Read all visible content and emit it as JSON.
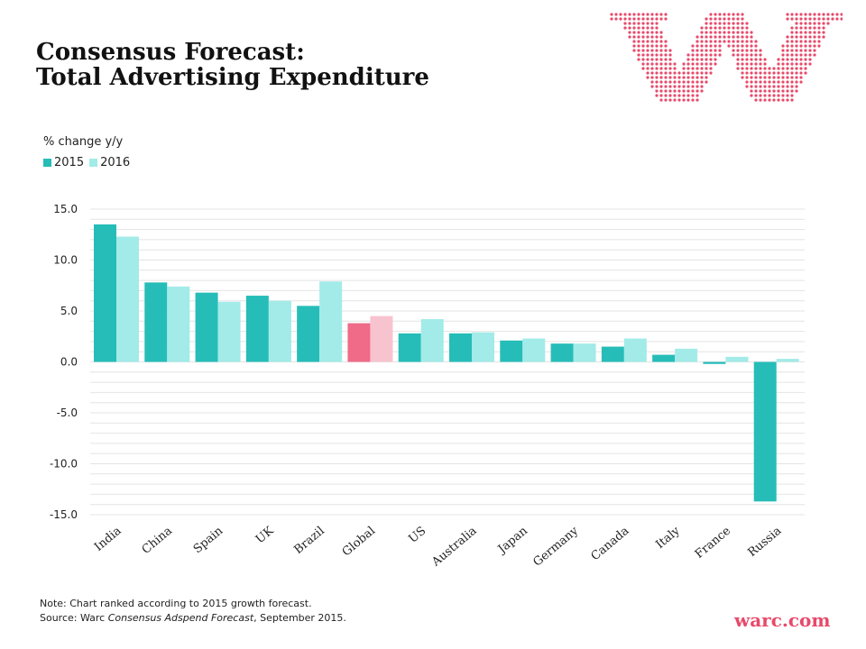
{
  "title_line1": "Consensus Forecast:",
  "title_line2": "Total Advertising Expenditure",
  "units": "% change y/y",
  "note_line1": "Note: Chart ranked according to 2015 growth forecast.",
  "source_prefix": "Source: Warc ",
  "source_italic": "Consensus Adspend Forecast",
  "source_suffix": ", September 2015.",
  "warc_logo_text": "warc.com",
  "logo_icon": "dotted-w-logo",
  "colors": {
    "s2015": "#26bdb8",
    "s2016": "#a2ebe8",
    "global2015": "#f06b88",
    "global2016": "#f7c3cf",
    "logo": "#e8496a",
    "grid": "#e4e4e4"
  },
  "chart_data": {
    "type": "bar",
    "title": "Consensus Forecast: Total Advertising Expenditure",
    "ylabel": "% change y/y",
    "xlabel": "",
    "ylim": [
      -15,
      15
    ],
    "yticks": [
      "15.0",
      "10.0",
      "5.0",
      "0.0",
      "-5.0",
      "-10.0",
      "-15.0"
    ],
    "ytick_values": [
      15,
      10,
      5,
      0,
      -5,
      -10,
      -15
    ],
    "grid": true,
    "legend_position": "top-left",
    "categories": [
      "India",
      "China",
      "Spain",
      "UK",
      "Brazil",
      "Global",
      "US",
      "Australia",
      "Japan",
      "Germany",
      "Canada",
      "Italy",
      "France",
      "Russia"
    ],
    "highlight_category": "Global",
    "series": [
      {
        "name": "2015",
        "values": [
          13.5,
          7.8,
          6.8,
          6.5,
          5.5,
          3.8,
          2.8,
          2.8,
          2.1,
          1.8,
          1.5,
          0.7,
          -0.2,
          -13.7
        ]
      },
      {
        "name": "2016",
        "values": [
          12.3,
          7.4,
          5.9,
          6.0,
          7.9,
          4.5,
          4.2,
          2.9,
          2.3,
          1.8,
          2.3,
          1.3,
          0.5,
          0.3
        ]
      }
    ]
  }
}
